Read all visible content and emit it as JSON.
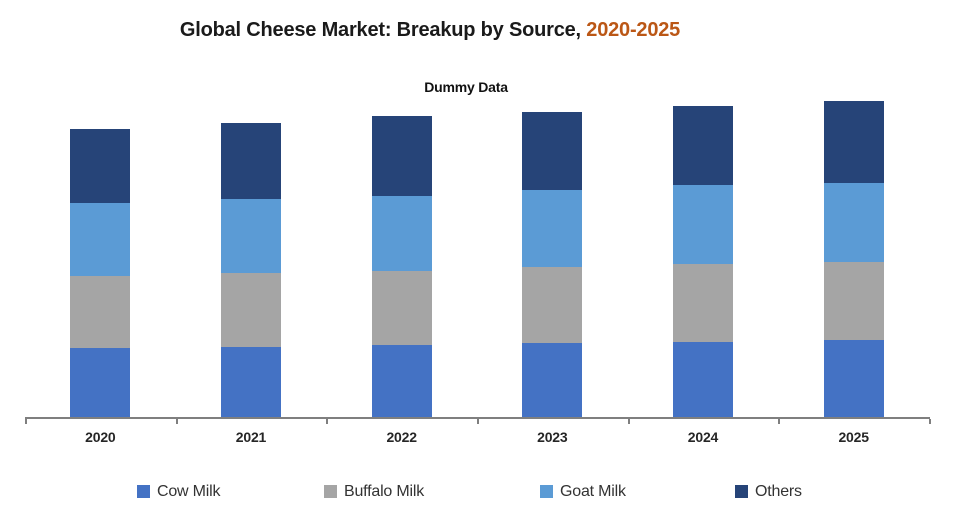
{
  "title": {
    "main": "Global Cheese Market: Breakup by Source, ",
    "period": "2020-2025"
  },
  "subtitle": "Dummy Data",
  "colors": {
    "title_main": "#1a1a1a",
    "title_period": "#BB5716",
    "axis": "#7F7F7F",
    "x_labels": "#262626",
    "legend_text": "#333333"
  },
  "chart_data": {
    "type": "bar",
    "stacked": true,
    "title": "Global Cheese Market: Breakup by Source, 2020-2025",
    "subtitle": "Dummy Data",
    "categories": [
      "2020",
      "2021",
      "2022",
      "2023",
      "2024",
      "2025"
    ],
    "series": [
      {
        "name": "Cow Milk",
        "color": "#4472C4",
        "values": [
          70,
          71,
          73,
          75,
          76,
          78
        ]
      },
      {
        "name": "Buffalo Milk",
        "color": "#A5A5A5",
        "values": [
          72,
          74,
          74,
          76,
          78,
          78
        ]
      },
      {
        "name": "Goat Milk",
        "color": "#5B9BD5",
        "values": [
          73,
          74,
          75,
          77,
          79,
          79
        ]
      },
      {
        "name": "Others",
        "color": "#264478",
        "values": [
          74,
          76,
          80,
          78,
          79,
          82
        ]
      }
    ],
    "totals": [
      289,
      295,
      302,
      306,
      312,
      317
    ],
    "units": "dummy units (no value axis shown)",
    "value_axis_visible": false,
    "gridlines": false,
    "legend_position": "bottom",
    "stacking_order_bottom_to_top": [
      "Cow Milk",
      "Buffalo Milk",
      "Goat Milk",
      "Others"
    ]
  }
}
